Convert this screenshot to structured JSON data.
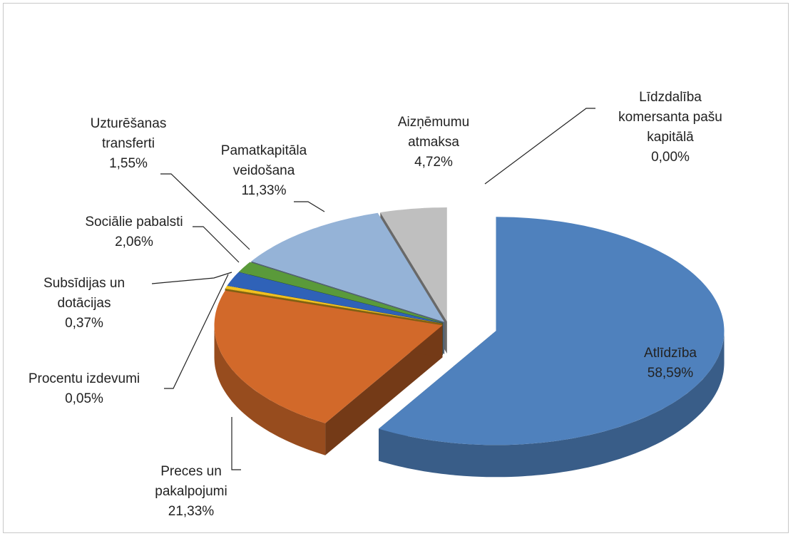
{
  "chart_data": {
    "type": "pie",
    "categories": [
      "Atlīdzība",
      "Preces un pakalpojumi",
      "Procentu izdevumi",
      "Subsīdijas un dotācijas",
      "Sociālie pabalsti",
      "Uzturēšanas transferti",
      "Pamatkapitāla veidošana",
      "Aizņēmumu atmaksa",
      "Līdzdalība komersanta pašu kapitālā"
    ],
    "values": [
      58.59,
      21.33,
      0.05,
      0.37,
      2.06,
      1.55,
      11.33,
      4.72,
      0.0
    ],
    "value_labels": [
      "58,59%",
      "21,33%",
      "0,05%",
      "0,37%",
      "2,06%",
      "1,55%",
      "11,33%",
      "4,72%",
      "0,00%"
    ],
    "colors": [
      "#4f81bd",
      "#d2692a",
      "#e8b020",
      "#f0c020",
      "#2f62b8",
      "#5a9a3a",
      "#95b3d7",
      "#bfbfbf",
      "#7f4a3a"
    ]
  }
}
